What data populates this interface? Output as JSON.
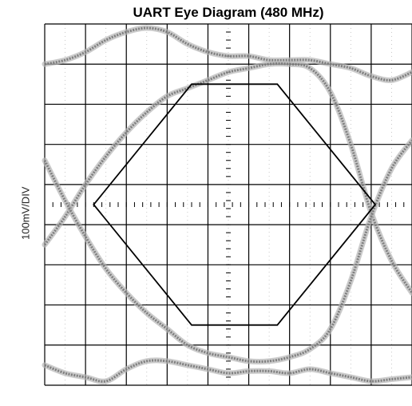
{
  "chart_data": {
    "type": "eye-diagram",
    "title": "UART Eye Diagram (480 MHz)",
    "ylabel": "100mV/DIV",
    "xlabel": "",
    "grid": true,
    "grid_divisions": {
      "x": 9,
      "y": 9
    },
    "colors": {
      "trace": "#777777",
      "grid": "#000000",
      "mask": "#000000"
    },
    "traces": [
      {
        "name": "",
        "x": [
          0,
          0.5,
          1,
          1.5,
          2,
          2.5,
          3,
          3.5,
          4,
          4.5,
          5,
          5.5,
          6,
          6.5,
          7,
          7.5,
          8,
          8.5,
          9
        ],
        "y": [
          8.0,
          8.1,
          8.3,
          8.6,
          8.8,
          8.9,
          8.8,
          8.5,
          8.3,
          8.2,
          8.2,
          8.1,
          8.1,
          8.1,
          8.0,
          7.9,
          7.7,
          7.6,
          7.8
        ]
      },
      {
        "name": "",
        "x": [
          0,
          0.5,
          1,
          1.5,
          2,
          2.5,
          3,
          3.5,
          4,
          4.5,
          5,
          5.5,
          6,
          6.5,
          7,
          7.5,
          8,
          8.5,
          9
        ],
        "y": [
          0.5,
          0.3,
          0.2,
          0.1,
          0.4,
          0.6,
          0.6,
          0.5,
          0.4,
          0.3,
          0.35,
          0.35,
          0.3,
          0.4,
          0.3,
          0.2,
          0.1,
          0.15,
          0.2
        ]
      },
      {
        "name": "",
        "x": [
          0,
          0.5,
          1,
          1.5,
          2,
          2.5,
          3,
          3.5,
          4,
          4.5,
          5,
          5.5,
          6,
          6.5,
          7,
          7.5,
          8,
          8.5,
          9
        ],
        "y": [
          3.5,
          4.2,
          5.0,
          5.7,
          6.3,
          6.8,
          7.2,
          7.4,
          7.6,
          7.8,
          7.9,
          8.0,
          8.0,
          7.9,
          7.3,
          6.0,
          4.3,
          3.1,
          2.3
        ]
      },
      {
        "name": "",
        "x": [
          0,
          0.5,
          1,
          1.5,
          2,
          2.5,
          3,
          3.5,
          4,
          4.5,
          5,
          5.5,
          6,
          6.5,
          7,
          7.5,
          8,
          8.5,
          9
        ],
        "y": [
          5.6,
          4.6,
          3.7,
          2.9,
          2.3,
          1.8,
          1.4,
          1.0,
          0.8,
          0.7,
          0.6,
          0.6,
          0.7,
          0.9,
          1.4,
          2.6,
          4.2,
          5.4,
          6.1
        ]
      }
    ],
    "mask": {
      "x": [
        1.2,
        3.6,
        5.7,
        8.1,
        5.7,
        3.6
      ],
      "y": [
        4.5,
        7.5,
        7.5,
        4.5,
        1.5,
        1.5
      ]
    }
  }
}
